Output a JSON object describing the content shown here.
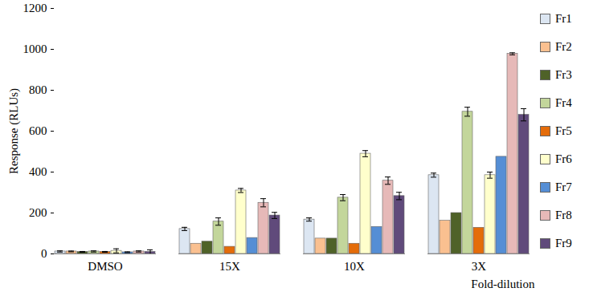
{
  "chart_data": {
    "type": "bar",
    "x_label": "Fold-dilution",
    "y_label": "Response (RLUs)",
    "categories": [
      "DMSO",
      "15X",
      "10X",
      "3X"
    ],
    "series": [
      {
        "name": "Fr1",
        "color": "#dce6f2",
        "values": [
          12,
          122,
          168,
          385
        ],
        "errors": [
          3,
          8,
          8,
          10
        ]
      },
      {
        "name": "Fr2",
        "color": "#fac090",
        "values": [
          12,
          50,
          75,
          162
        ],
        "errors": [
          2,
          0,
          0,
          0
        ]
      },
      {
        "name": "Fr3",
        "color": "#4f6228",
        "values": [
          10,
          60,
          75,
          200
        ],
        "errors": [
          2,
          0,
          0,
          0
        ]
      },
      {
        "name": "Fr4",
        "color": "#c3d69b",
        "values": [
          12,
          158,
          275,
          695
        ],
        "errors": [
          3,
          18,
          15,
          22
        ]
      },
      {
        "name": "Fr5",
        "color": "#e46c0a",
        "values": [
          10,
          35,
          50,
          128
        ],
        "errors": [
          2,
          0,
          0,
          0
        ]
      },
      {
        "name": "Fr6",
        "color": "#ffffcc",
        "values": [
          15,
          310,
          490,
          385
        ],
        "errors": [
          10,
          10,
          15,
          15
        ]
      },
      {
        "name": "Fr7",
        "color": "#558ed5",
        "values": [
          8,
          78,
          132,
          475
        ],
        "errors": [
          2,
          0,
          0,
          0
        ]
      },
      {
        "name": "Fr8",
        "color": "#e6b9b8",
        "values": [
          12,
          250,
          358,
          978
        ],
        "errors": [
          3,
          20,
          18,
          5
        ]
      },
      {
        "name": "Fr9",
        "color": "#604a7b",
        "values": [
          10,
          188,
          283,
          680
        ],
        "errors": [
          10,
          15,
          18,
          30
        ]
      }
    ],
    "ylim": [
      0,
      1200
    ],
    "yticks": [
      0,
      200,
      400,
      600,
      800,
      1000,
      1200
    ],
    "legend": "right",
    "grid": false
  }
}
